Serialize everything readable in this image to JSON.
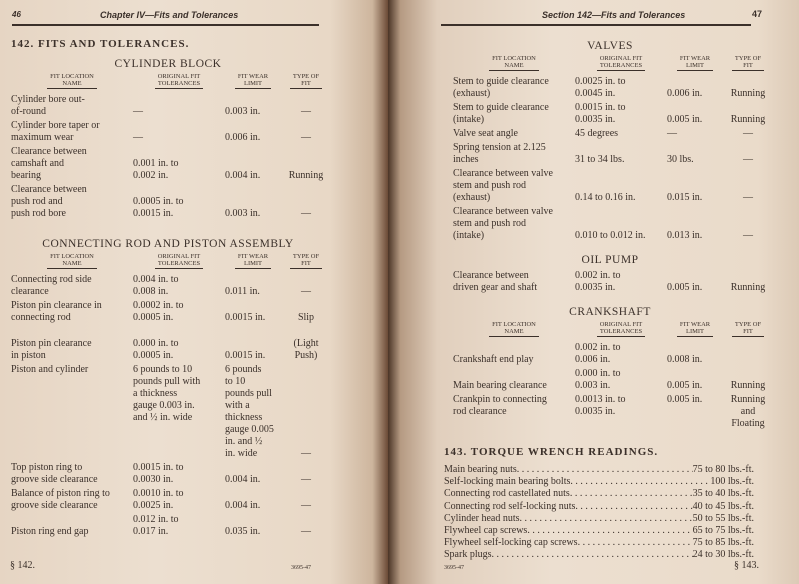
{
  "left_page": {
    "page_number": "46",
    "running_head": "Chapter IV—Fits and Tolerances",
    "section_heading": "142. FITS AND TOLERANCES.",
    "footer_section": "§ 142.",
    "footer_code": "3695-47",
    "tables": [
      {
        "title": "CYLINDER BLOCK",
        "columns": [
          "FIT LOCATION\nNAME",
          "ORIGINAL FIT\nTOLERANCES",
          "FIT WEAR\nLIMIT",
          "TYPE OF\nFIT"
        ],
        "rows": [
          {
            "name": "Cylinder bore out-\n   of-round",
            "original": "—",
            "wear": "0.003 in.",
            "type": "—"
          },
          {
            "name": "Cylinder bore taper or\n   maximum wear",
            "original": "—",
            "wear": "0.006 in.",
            "type": "—"
          },
          {
            "name": "Clearance between\n   camshaft and\n   bearing",
            "original": "0.001 in. to\n0.002 in.",
            "wear": "0.004 in.",
            "type": "Running"
          },
          {
            "name": "Clearance between\n   push rod and\n   push rod bore",
            "original": "0.0005 in. to\n0.0015 in.",
            "wear": "0.003 in.",
            "type": "—"
          }
        ]
      },
      {
        "title": "CONNECTING ROD AND PISTON ASSEMBLY",
        "columns": [
          "FIT LOCATION\nNAME",
          "ORIGINAL FIT\nTOLERANCES",
          "FIT WEAR\nLIMIT",
          "TYPE OF\nFIT"
        ],
        "rows": [
          {
            "name": "Connecting rod side\n   clearance",
            "original": "0.004 in. to\n0.008 in.",
            "wear": "0.011 in.",
            "type": "—"
          },
          {
            "name": "Piston pin clearance in\n   connecting rod",
            "original": "0.0002 in. to\n0.0005 in.",
            "wear": "0.0015 in.",
            "type": "Slip"
          },
          {
            "name": "Piston pin clearance\n   in piston",
            "original": "0.000 in. to\n0.0005 in.",
            "wear": "0.0015 in.",
            "type": "(Light\nPush)"
          },
          {
            "name": "Piston and cylinder",
            "original": "6 pounds to 10\npounds pull with\na thickness\ngauge 0.003 in.\nand ½ in. wide",
            "wear": "6 pounds\nto 10\npounds pull\nwith a\nthickness\ngauge 0.005\nin. and ½\nin. wide",
            "type": "—"
          },
          {
            "name": "Top piston ring to\n   groove side clearance",
            "original": "0.0015 in. to\n0.0030 in.",
            "wear": "0.004 in.",
            "type": "—"
          },
          {
            "name": "Balance of piston ring to\n   groove side clearance",
            "original": "0.0010 in. to\n0.0025 in.",
            "wear": "0.004 in.",
            "type": "—"
          },
          {
            "name": "Piston ring end gap",
            "original": "0.012 in. to\n0.017 in.",
            "wear": "0.035 in.",
            "type": "—"
          }
        ]
      }
    ]
  },
  "right_page": {
    "page_number": "47",
    "running_head": "Section 142—Fits and Tolerances",
    "footer_section": "§ 143.",
    "footer_code": "3695-47",
    "tables": [
      {
        "title": "VALVES",
        "columns": [
          "FIT LOCATION\nNAME",
          "ORIGINAL FIT\nTOLERANCES",
          "FIT WEAR\nLIMIT",
          "TYPE OF\nFIT"
        ],
        "rows": [
          {
            "name": "Stem to guide clearance\n   (exhaust)",
            "original": "0.0025 in. to\n0.0045 in.",
            "wear": "0.006 in.",
            "type": "Running"
          },
          {
            "name": "Stem to guide clearance\n   (intake)",
            "original": "0.0015 in. to\n0.0035 in.",
            "wear": "0.005 in.",
            "type": "Running"
          },
          {
            "name": "Valve seat angle",
            "original": "45 degrees",
            "wear": "—",
            "type": "—"
          },
          {
            "name": "Spring tension at 2.125\n   inches",
            "original": "31 to 34 lbs.",
            "wear": "30 lbs.",
            "type": "—"
          },
          {
            "name": "Clearance between valve\n   stem and push rod\n   (exhaust)",
            "original": "0.14 to 0.16 in.",
            "wear": "0.015 in.",
            "type": "—"
          },
          {
            "name": "Clearance between valve\n   stem and push rod\n   (intake)",
            "original": "0.010 to 0.012 in.",
            "wear": "0.013 in.",
            "type": "—"
          }
        ]
      },
      {
        "title": "OIL PUMP",
        "columns": [],
        "rows": [
          {
            "name": "Clearance between\n   driven gear and shaft",
            "original": "0.002 in. to\n0.0035 in.",
            "wear": "0.005 in.",
            "type": "Running"
          }
        ]
      },
      {
        "title": "CRANKSHAFT",
        "columns": [
          "FIT LOCATION\nNAME",
          "ORIGINAL FIT\nTOLERANCES",
          "FIT WEAR\nLIMIT",
          "TYPE OF\nFIT"
        ],
        "rows": [
          {
            "name": "Crankshaft end play",
            "original": "0.002 in. to\n0.006 in.",
            "wear": "0.008 in.",
            "type": ""
          },
          {
            "name": "Main bearing clearance",
            "original": "0.000 in. to\n0.003 in.",
            "wear": "0.005 in.",
            "type": "Running"
          },
          {
            "name": "Crankpin to connecting\n   rod clearance",
            "original": "0.0013 in. to\n0.0035 in.",
            "wear": "0.005 in.",
            "type": "Running\nand\nFloating"
          }
        ]
      }
    ],
    "torque": {
      "heading": "143. TORQUE WRENCH READINGS.",
      "items": [
        {
          "label": "Main bearing nuts",
          "value": "75 to 80 lbs.-ft."
        },
        {
          "label": "Self-locking main bearing bolts",
          "value": "100 lbs.-ft."
        },
        {
          "label": "Connecting rod castellated nuts",
          "value": "35 to 40 lbs.-ft."
        },
        {
          "label": "Connecting rod self-locking nuts",
          "value": "40 to 45 lbs.-ft."
        },
        {
          "label": "Cylinder head nuts",
          "value": "50 to 55 lbs.-ft."
        },
        {
          "label": "Flywheel cap screws",
          "value": "65 to 75 lbs.-ft."
        },
        {
          "label": "Flywheel self-locking cap screws",
          "value": "75 to 85 lbs.-ft."
        },
        {
          "label": "Spark plugs",
          "value": "24 to 30 lbs.-ft."
        }
      ]
    }
  }
}
